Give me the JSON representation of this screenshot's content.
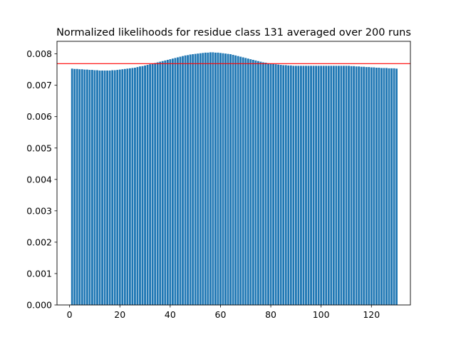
{
  "chart_data": {
    "type": "bar",
    "title": "Normalized likelihoods for residue class 131 averaged over 200 runs",
    "xlabel": "",
    "ylabel": "",
    "xlim": [
      -5,
      135.5
    ],
    "ylim": [
      0,
      0.0084
    ],
    "x_ticks": [
      0,
      20,
      40,
      60,
      80,
      100,
      120
    ],
    "x_tick_labels": [
      "0",
      "20",
      "40",
      "60",
      "80",
      "100",
      "120"
    ],
    "y_ticks": [
      0,
      0.001,
      0.002,
      0.003,
      0.004,
      0.005,
      0.006,
      0.007,
      0.008
    ],
    "y_tick_labels": [
      "0.000",
      "0.001",
      "0.002",
      "0.003",
      "0.004",
      "0.005",
      "0.006",
      "0.007",
      "0.008"
    ],
    "bar_color": "#1f77b4",
    "reference_line": {
      "y": 0.00769,
      "color": "#ff0000"
    },
    "x": [
      1,
      2,
      3,
      4,
      5,
      6,
      7,
      8,
      9,
      10,
      11,
      12,
      13,
      14,
      15,
      16,
      17,
      18,
      19,
      20,
      21,
      22,
      23,
      24,
      25,
      26,
      27,
      28,
      29,
      30,
      31,
      32,
      33,
      34,
      35,
      36,
      37,
      38,
      39,
      40,
      41,
      42,
      43,
      44,
      45,
      46,
      47,
      48,
      49,
      50,
      51,
      52,
      53,
      54,
      55,
      56,
      57,
      58,
      59,
      60,
      61,
      62,
      63,
      64,
      65,
      66,
      67,
      68,
      69,
      70,
      71,
      72,
      73,
      74,
      75,
      76,
      77,
      78,
      79,
      80,
      81,
      82,
      83,
      84,
      85,
      86,
      87,
      88,
      89,
      90,
      91,
      92,
      93,
      94,
      95,
      96,
      97,
      98,
      99,
      100,
      101,
      102,
      103,
      104,
      105,
      106,
      107,
      108,
      109,
      110,
      111,
      112,
      113,
      114,
      115,
      116,
      117,
      118,
      119,
      120,
      121,
      122,
      123,
      124,
      125,
      126,
      127,
      128,
      129,
      130
    ],
    "values": [
      0.00753,
      0.00752,
      0.00752,
      0.00751,
      0.00751,
      0.0075,
      0.0075,
      0.00749,
      0.00749,
      0.00748,
      0.00748,
      0.00747,
      0.00747,
      0.00747,
      0.00747,
      0.00747,
      0.00748,
      0.00748,
      0.00749,
      0.0075,
      0.00751,
      0.00752,
      0.00753,
      0.00754,
      0.00755,
      0.00756,
      0.00758,
      0.0076,
      0.00761,
      0.00763,
      0.00765,
      0.00767,
      0.00769,
      0.00771,
      0.00773,
      0.00775,
      0.00777,
      0.00779,
      0.00781,
      0.00783,
      0.00785,
      0.00787,
      0.00789,
      0.00791,
      0.00793,
      0.00795,
      0.00796,
      0.00798,
      0.00799,
      0.008,
      0.00801,
      0.00802,
      0.00803,
      0.00804,
      0.00804,
      0.00805,
      0.00805,
      0.00804,
      0.00804,
      0.00803,
      0.00802,
      0.00801,
      0.008,
      0.00799,
      0.00797,
      0.00795,
      0.00793,
      0.00791,
      0.00789,
      0.00787,
      0.00785,
      0.00783,
      0.00781,
      0.00779,
      0.00777,
      0.00775,
      0.00773,
      0.00772,
      0.0077,
      0.00769,
      0.00768,
      0.00767,
      0.00766,
      0.00765,
      0.00764,
      0.00764,
      0.00763,
      0.00763,
      0.00762,
      0.00762,
      0.00762,
      0.00762,
      0.00762,
      0.00762,
      0.00762,
      0.00762,
      0.00762,
      0.00762,
      0.00762,
      0.00762,
      0.00762,
      0.00762,
      0.00762,
      0.00762,
      0.00762,
      0.00762,
      0.00762,
      0.00762,
      0.00762,
      0.00762,
      0.00762,
      0.00761,
      0.00761,
      0.0076,
      0.0076,
      0.00759,
      0.00759,
      0.00758,
      0.00758,
      0.00757,
      0.00757,
      0.00756,
      0.00756,
      0.00755,
      0.00755,
      0.00755,
      0.00754,
      0.00754,
      0.00754,
      0.00753
    ]
  }
}
